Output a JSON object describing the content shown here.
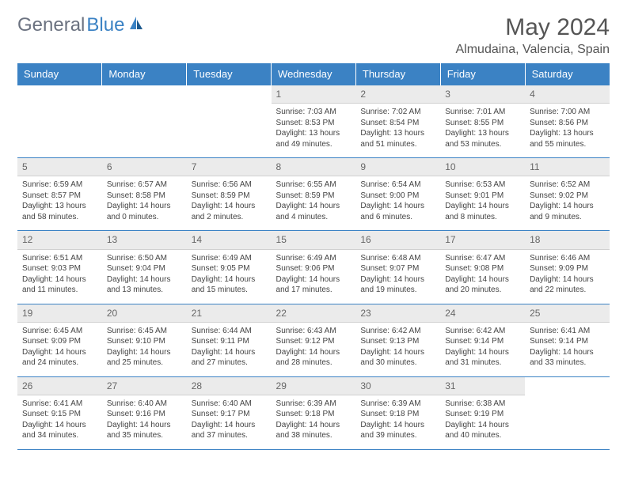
{
  "brand": {
    "part1": "General",
    "part2": "Blue"
  },
  "title": "May 2024",
  "location": "Almudaina, Valencia, Spain",
  "colors": {
    "header_bg": "#3b82c4",
    "header_fg": "#ffffff",
    "cell_border": "#3b82c4",
    "daynum_bg": "#ebebeb",
    "text": "#444444",
    "brand_gray": "#6b7280",
    "brand_blue": "#3b82c4",
    "background": "#ffffff"
  },
  "typography": {
    "title_fontsize": 30,
    "location_fontsize": 16,
    "header_fontsize": 13,
    "daynum_fontsize": 12,
    "body_fontsize": 10
  },
  "weekdays": [
    "Sunday",
    "Monday",
    "Tuesday",
    "Wednesday",
    "Thursday",
    "Friday",
    "Saturday"
  ],
  "weeks": [
    [
      null,
      null,
      null,
      {
        "n": "1",
        "sr": "Sunrise: 7:03 AM",
        "ss": "Sunset: 8:53 PM",
        "dl": "Daylight: 13 hours and 49 minutes."
      },
      {
        "n": "2",
        "sr": "Sunrise: 7:02 AM",
        "ss": "Sunset: 8:54 PM",
        "dl": "Daylight: 13 hours and 51 minutes."
      },
      {
        "n": "3",
        "sr": "Sunrise: 7:01 AM",
        "ss": "Sunset: 8:55 PM",
        "dl": "Daylight: 13 hours and 53 minutes."
      },
      {
        "n": "4",
        "sr": "Sunrise: 7:00 AM",
        "ss": "Sunset: 8:56 PM",
        "dl": "Daylight: 13 hours and 55 minutes."
      }
    ],
    [
      {
        "n": "5",
        "sr": "Sunrise: 6:59 AM",
        "ss": "Sunset: 8:57 PM",
        "dl": "Daylight: 13 hours and 58 minutes."
      },
      {
        "n": "6",
        "sr": "Sunrise: 6:57 AM",
        "ss": "Sunset: 8:58 PM",
        "dl": "Daylight: 14 hours and 0 minutes."
      },
      {
        "n": "7",
        "sr": "Sunrise: 6:56 AM",
        "ss": "Sunset: 8:59 PM",
        "dl": "Daylight: 14 hours and 2 minutes."
      },
      {
        "n": "8",
        "sr": "Sunrise: 6:55 AM",
        "ss": "Sunset: 8:59 PM",
        "dl": "Daylight: 14 hours and 4 minutes."
      },
      {
        "n": "9",
        "sr": "Sunrise: 6:54 AM",
        "ss": "Sunset: 9:00 PM",
        "dl": "Daylight: 14 hours and 6 minutes."
      },
      {
        "n": "10",
        "sr": "Sunrise: 6:53 AM",
        "ss": "Sunset: 9:01 PM",
        "dl": "Daylight: 14 hours and 8 minutes."
      },
      {
        "n": "11",
        "sr": "Sunrise: 6:52 AM",
        "ss": "Sunset: 9:02 PM",
        "dl": "Daylight: 14 hours and 9 minutes."
      }
    ],
    [
      {
        "n": "12",
        "sr": "Sunrise: 6:51 AM",
        "ss": "Sunset: 9:03 PM",
        "dl": "Daylight: 14 hours and 11 minutes."
      },
      {
        "n": "13",
        "sr": "Sunrise: 6:50 AM",
        "ss": "Sunset: 9:04 PM",
        "dl": "Daylight: 14 hours and 13 minutes."
      },
      {
        "n": "14",
        "sr": "Sunrise: 6:49 AM",
        "ss": "Sunset: 9:05 PM",
        "dl": "Daylight: 14 hours and 15 minutes."
      },
      {
        "n": "15",
        "sr": "Sunrise: 6:49 AM",
        "ss": "Sunset: 9:06 PM",
        "dl": "Daylight: 14 hours and 17 minutes."
      },
      {
        "n": "16",
        "sr": "Sunrise: 6:48 AM",
        "ss": "Sunset: 9:07 PM",
        "dl": "Daylight: 14 hours and 19 minutes."
      },
      {
        "n": "17",
        "sr": "Sunrise: 6:47 AM",
        "ss": "Sunset: 9:08 PM",
        "dl": "Daylight: 14 hours and 20 minutes."
      },
      {
        "n": "18",
        "sr": "Sunrise: 6:46 AM",
        "ss": "Sunset: 9:09 PM",
        "dl": "Daylight: 14 hours and 22 minutes."
      }
    ],
    [
      {
        "n": "19",
        "sr": "Sunrise: 6:45 AM",
        "ss": "Sunset: 9:09 PM",
        "dl": "Daylight: 14 hours and 24 minutes."
      },
      {
        "n": "20",
        "sr": "Sunrise: 6:45 AM",
        "ss": "Sunset: 9:10 PM",
        "dl": "Daylight: 14 hours and 25 minutes."
      },
      {
        "n": "21",
        "sr": "Sunrise: 6:44 AM",
        "ss": "Sunset: 9:11 PM",
        "dl": "Daylight: 14 hours and 27 minutes."
      },
      {
        "n": "22",
        "sr": "Sunrise: 6:43 AM",
        "ss": "Sunset: 9:12 PM",
        "dl": "Daylight: 14 hours and 28 minutes."
      },
      {
        "n": "23",
        "sr": "Sunrise: 6:42 AM",
        "ss": "Sunset: 9:13 PM",
        "dl": "Daylight: 14 hours and 30 minutes."
      },
      {
        "n": "24",
        "sr": "Sunrise: 6:42 AM",
        "ss": "Sunset: 9:14 PM",
        "dl": "Daylight: 14 hours and 31 minutes."
      },
      {
        "n": "25",
        "sr": "Sunrise: 6:41 AM",
        "ss": "Sunset: 9:14 PM",
        "dl": "Daylight: 14 hours and 33 minutes."
      }
    ],
    [
      {
        "n": "26",
        "sr": "Sunrise: 6:41 AM",
        "ss": "Sunset: 9:15 PM",
        "dl": "Daylight: 14 hours and 34 minutes."
      },
      {
        "n": "27",
        "sr": "Sunrise: 6:40 AM",
        "ss": "Sunset: 9:16 PM",
        "dl": "Daylight: 14 hours and 35 minutes."
      },
      {
        "n": "28",
        "sr": "Sunrise: 6:40 AM",
        "ss": "Sunset: 9:17 PM",
        "dl": "Daylight: 14 hours and 37 minutes."
      },
      {
        "n": "29",
        "sr": "Sunrise: 6:39 AM",
        "ss": "Sunset: 9:18 PM",
        "dl": "Daylight: 14 hours and 38 minutes."
      },
      {
        "n": "30",
        "sr": "Sunrise: 6:39 AM",
        "ss": "Sunset: 9:18 PM",
        "dl": "Daylight: 14 hours and 39 minutes."
      },
      {
        "n": "31",
        "sr": "Sunrise: 6:38 AM",
        "ss": "Sunset: 9:19 PM",
        "dl": "Daylight: 14 hours and 40 minutes."
      },
      null
    ]
  ]
}
